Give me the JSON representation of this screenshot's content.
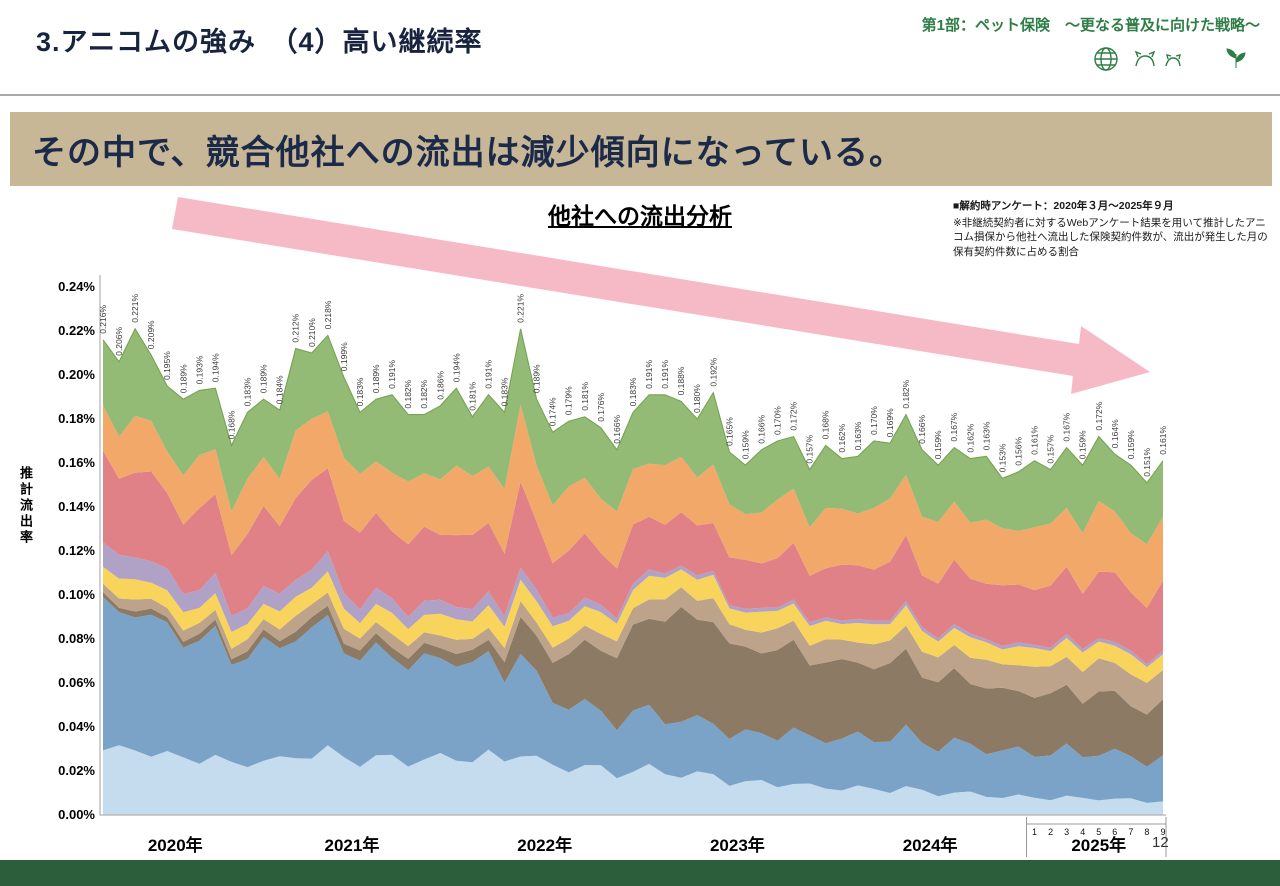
{
  "header": {
    "title": "3.アニコムの強み　（4）高い継続率",
    "right_tagline": "第1部：ペット保険　～更なる普及に向けた戦略～"
  },
  "banner": {
    "text": "その中で、競合他社への流出は減少傾向になっている。"
  },
  "notes": {
    "line1": "■解約時アンケート：2020年３月～2025年９月",
    "line2": "※非継続契約者に対するWebアンケート結果を用いて推計したアニコム損保から他社へ流出した保険契約件数が、流出が発生した月の保有契約件数に占める割合"
  },
  "page_number": "12",
  "colors": {
    "banner_bg": "#c7b796",
    "banner_text": "#1c2a4a",
    "header_title": "#17233f",
    "tagline_green": "#2e7d46",
    "footer_green": "#2d5e3c",
    "trend_arrow": "#f5aebd"
  },
  "chart_data": {
    "type": "area",
    "variant": "stacked-area",
    "title": "他社への流出分析",
    "ylabel": "推計流出率",
    "ylim": [
      0,
      0.24
    ],
    "ytick_step": 0.02,
    "yticks": [
      "0.00%",
      "0.02%",
      "0.04%",
      "0.06%",
      "0.08%",
      "0.10%",
      "0.12%",
      "0.14%",
      "0.16%",
      "0.18%",
      "0.20%",
      "0.22%",
      "0.24%"
    ],
    "grid": false,
    "legend": "none",
    "period": "2020-03 to 2025-09, monthly",
    "x_years": [
      {
        "label": "2020年",
        "months": 10
      },
      {
        "label": "2021年",
        "months": 12
      },
      {
        "label": "2022年",
        "months": 12
      },
      {
        "label": "2023年",
        "months": 12
      },
      {
        "label": "2024年",
        "months": 12
      },
      {
        "label": "2025年",
        "months": 9
      }
    ],
    "x_month_digits_2025": [
      "1",
      "2",
      "3",
      "4",
      "5",
      "6",
      "7",
      "8",
      "9"
    ],
    "totals_percent": [
      0.216,
      0.206,
      0.221,
      0.209,
      0.195,
      0.189,
      0.193,
      0.194,
      0.168,
      0.183,
      0.189,
      0.184,
      0.212,
      0.21,
      0.218,
      0.199,
      0.183,
      0.189,
      0.191,
      0.182,
      0.182,
      0.186,
      0.194,
      0.181,
      0.191,
      0.183,
      0.221,
      0.189,
      0.174,
      0.179,
      0.181,
      0.176,
      0.166,
      0.183,
      0.191,
      0.191,
      0.188,
      0.18,
      0.192,
      0.165,
      0.159,
      0.166,
      0.17,
      0.172,
      0.157,
      0.168,
      0.162,
      0.163,
      0.17,
      0.169,
      0.182,
      0.166,
      0.159,
      0.167,
      0.162,
      0.163,
      0.153,
      0.156,
      0.161,
      0.157,
      0.167,
      0.159,
      0.172,
      0.164,
      0.159,
      0.151,
      0.161
    ],
    "totals_label_format": "0.000%",
    "series_note": "per-company split not labeled in source; shares estimated visually",
    "series": [
      {
        "name": "layer-1-pale-blue",
        "color": "#c5dcef",
        "share_keyframes": [
          [
            0,
            0.14
          ],
          [
            12,
            0.13
          ],
          [
            24,
            0.14
          ],
          [
            30,
            0.12
          ],
          [
            36,
            0.1
          ],
          [
            48,
            0.07
          ],
          [
            58,
            0.05
          ],
          [
            66,
            0.04
          ]
        ]
      },
      {
        "name": "layer-2-steel-blue",
        "color": "#7ba3c8",
        "share_keyframes": [
          [
            0,
            0.3
          ],
          [
            12,
            0.27
          ],
          [
            24,
            0.23
          ],
          [
            30,
            0.15
          ],
          [
            36,
            0.13
          ],
          [
            48,
            0.14
          ],
          [
            58,
            0.13
          ],
          [
            66,
            0.12
          ]
        ]
      },
      {
        "name": "layer-3-brown",
        "color": "#8c7a64",
        "share_keyframes": [
          [
            0,
            0.01
          ],
          [
            12,
            0.02
          ],
          [
            24,
            0.03
          ],
          [
            30,
            0.15
          ],
          [
            36,
            0.26
          ],
          [
            48,
            0.2
          ],
          [
            58,
            0.17
          ],
          [
            66,
            0.15
          ]
        ]
      },
      {
        "name": "layer-4-tan",
        "color": "#bca389",
        "share_keyframes": [
          [
            0,
            0.02
          ],
          [
            12,
            0.03
          ],
          [
            24,
            0.03
          ],
          [
            30,
            0.04
          ],
          [
            36,
            0.05
          ],
          [
            48,
            0.06
          ],
          [
            58,
            0.08
          ],
          [
            66,
            0.09
          ]
        ]
      },
      {
        "name": "layer-5-yellow",
        "color": "#f9d45c",
        "share_keyframes": [
          [
            0,
            0.04
          ],
          [
            12,
            0.04
          ],
          [
            24,
            0.05
          ],
          [
            30,
            0.05
          ],
          [
            36,
            0.05
          ],
          [
            48,
            0.05
          ],
          [
            58,
            0.05
          ],
          [
            66,
            0.05
          ]
        ]
      },
      {
        "name": "layer-6-purple",
        "color": "#b0a1c6",
        "share_keyframes": [
          [
            0,
            0.05
          ],
          [
            12,
            0.04
          ],
          [
            24,
            0.03
          ],
          [
            30,
            0.02
          ],
          [
            36,
            0.01
          ],
          [
            48,
            0.01
          ],
          [
            58,
            0.01
          ],
          [
            66,
            0.01
          ]
        ]
      },
      {
        "name": "layer-7-red",
        "color": "#e08087",
        "share_keyframes": [
          [
            0,
            0.18
          ],
          [
            12,
            0.18
          ],
          [
            24,
            0.17
          ],
          [
            30,
            0.15
          ],
          [
            36,
            0.12
          ],
          [
            48,
            0.15
          ],
          [
            58,
            0.17
          ],
          [
            66,
            0.18
          ]
        ]
      },
      {
        "name": "layer-8-orange",
        "color": "#f2a869",
        "share_keyframes": [
          [
            0,
            0.1
          ],
          [
            12,
            0.13
          ],
          [
            24,
            0.15
          ],
          [
            30,
            0.15
          ],
          [
            36,
            0.13
          ],
          [
            48,
            0.16
          ],
          [
            58,
            0.17
          ],
          [
            66,
            0.18
          ]
        ]
      },
      {
        "name": "layer-9-green",
        "color": "#93bb76",
        "share_keyframes": [
          [
            0,
            0.16
          ],
          [
            12,
            0.16
          ],
          [
            24,
            0.17
          ],
          [
            30,
            0.17
          ],
          [
            36,
            0.15
          ],
          [
            48,
            0.16
          ],
          [
            58,
            0.17
          ],
          [
            66,
            0.18
          ]
        ]
      }
    ],
    "top_edge_color": "#76a355",
    "trend_arrow": {
      "direction": "down-right",
      "color": "#f5aebd"
    }
  }
}
